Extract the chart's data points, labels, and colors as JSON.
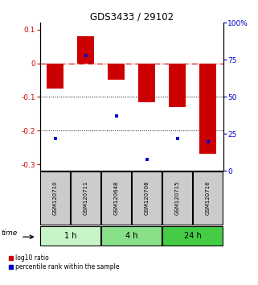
{
  "title": "GDS3433 / 29102",
  "samples": [
    "GSM120710",
    "GSM120711",
    "GSM120648",
    "GSM120708",
    "GSM120715",
    "GSM120716"
  ],
  "log10_ratio": [
    -0.075,
    0.08,
    -0.05,
    -0.115,
    -0.13,
    -0.27
  ],
  "percentile_rank": [
    22,
    78,
    37,
    8,
    22,
    20
  ],
  "groups": [
    {
      "label": "1 h",
      "indices": [
        0,
        1
      ],
      "color": "#c8f5c8"
    },
    {
      "label": "4 h",
      "indices": [
        2,
        3
      ],
      "color": "#88e088"
    },
    {
      "label": "24 h",
      "indices": [
        4,
        5
      ],
      "color": "#44cc44"
    }
  ],
  "ylim_left": [
    -0.32,
    0.12
  ],
  "ylim_right": [
    0,
    100
  ],
  "bar_color": "#cc0000",
  "dot_color": "#0000cc",
  "bar_width": 0.55,
  "hline_y": 0,
  "dotted_lines": [
    -0.1,
    -0.2
  ],
  "right_ticks": [
    0,
    25,
    50,
    75,
    100
  ],
  "right_tick_labels": [
    "0",
    "25",
    "50",
    "75",
    "100%"
  ],
  "left_ticks": [
    -0.3,
    -0.2,
    -0.1,
    0,
    0.1
  ],
  "background_color": "#ffffff",
  "legend_red_label": "log10 ratio",
  "legend_blue_label": "percentile rank within the sample",
  "time_label": "time",
  "sample_box_color": "#cccccc"
}
